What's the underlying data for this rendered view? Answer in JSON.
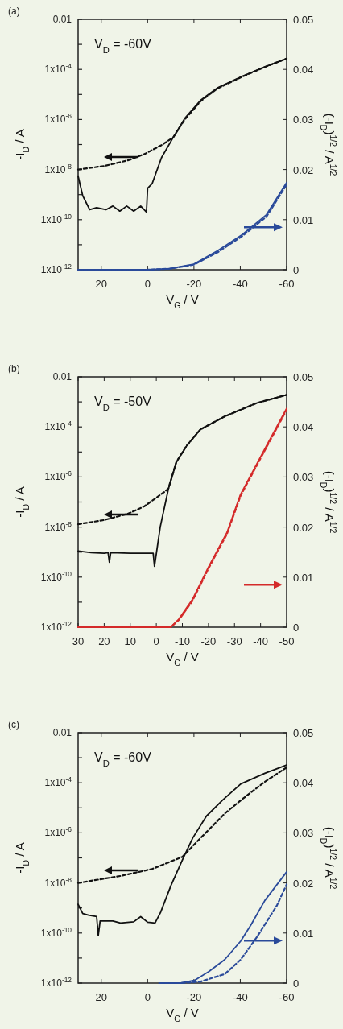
{
  "chart_data": [
    {
      "type": "line",
      "title": "(a)",
      "xlabel": "V$_{G}$ / V",
      "ylabel": "-I$_{D}$ / A",
      "y2label": "(-I$_{D}$)$^{1/2}$ / A$^{1/2}$",
      "annotations": [
        "V$_{D}$ = -60V"
      ],
      "log": "y",
      "xlim": [
        30,
        -60
      ],
      "xticks": [
        20,
        0,
        -20,
        -40,
        -60
      ],
      "ylim": [
        1e-12,
        0.01
      ],
      "yticks": [
        {
          "value": 1e-12,
          "label": "1x10$^{-12}$"
        },
        {
          "value": 1e-11,
          "label": null
        },
        {
          "value": 1e-10,
          "label": "1x10$^{-10}$"
        },
        {
          "value": 1e-09,
          "label": null
        },
        {
          "value": 1e-08,
          "label": "1x10$^{-8}$"
        },
        {
          "value": 1e-07,
          "label": null
        },
        {
          "value": 1e-06,
          "label": "1x10$^{-6}$"
        },
        {
          "value": 1e-05,
          "label": null
        },
        {
          "value": 0.0001,
          "label": "1x10$^{-4}$"
        },
        {
          "value": 0.001,
          "label": null
        },
        {
          "value": 0.01,
          "label": "0.01"
        }
      ],
      "y2lim": [
        0,
        0.05
      ],
      "y2ticks": [
        0,
        0.01,
        0.02,
        0.03,
        0.04,
        0.05
      ],
      "series": [
        {
          "color": "#111111",
          "line_style": "solid",
          "x": [
            30,
            28,
            25,
            22,
            18,
            15,
            12,
            9,
            6,
            3,
            0.5,
            0,
            -2,
            -6,
            -11,
            -16,
            -23,
            -30,
            -41,
            -51,
            -60
          ],
          "values": [
            5.5e-09,
            9e-10,
            2.5e-10,
            3e-10,
            2.5e-10,
            3.5e-10,
            2.2e-10,
            3.5e-10,
            2.2e-10,
            3.5e-10,
            2e-10,
            1.8e-09,
            2.8e-09,
            3e-08,
            1.9e-07,
            1.1e-06,
            6e-06,
            1.8e-05,
            5.4e-05,
            0.00013,
            0.00027
          ]
        },
        {
          "color": "#111111",
          "line_style": "dashed",
          "x": [
            30,
            18.5,
            8,
            1,
            -6,
            -11,
            -16,
            -23,
            -30,
            -41,
            -51,
            -60
          ],
          "values": [
            1e-08,
            1.4e-08,
            2.4e-08,
            4.3e-08,
            9.5e-08,
            1.9e-07,
            1e-06,
            5.5e-06,
            1.7e-05,
            5.2e-05,
            0.00013,
            0.00027
          ]
        },
        {
          "color": "#2a4a9a",
          "line_style": "solid",
          "axis": "y2",
          "x": [
            30,
            0,
            -9.4,
            -19.9,
            -30.3,
            -40.8,
            -51.3,
            -60
          ],
          "values": [
            0,
            0,
            0.0002,
            0.0011,
            0.0038,
            0.007,
            0.011,
            0.0174
          ]
        },
        {
          "color": "#2a4a9a",
          "line_style": "dashed",
          "axis": "y2",
          "x": [
            30,
            0,
            -9.4,
            -19.9,
            -30.3,
            -40.8,
            -51.3,
            -60
          ],
          "values": [
            0,
            0,
            0.0002,
            0.001,
            0.0035,
            0.0067,
            0.0106,
            0.017
          ]
        }
      ]
    },
    {
      "type": "line",
      "title": "(b)",
      "xlabel": "V$_{G}$ / V",
      "ylabel": "-I$_{D}$ / A",
      "y2label": "(-I$_{D}$)$^{1/2}$ / A$^{1/2}$",
      "annotations": [
        "V$_{D}$ = -50V"
      ],
      "log": "y",
      "xlim": [
        30,
        -50
      ],
      "xticks": [
        30,
        20,
        10,
        0,
        -10,
        -20,
        -30,
        -40,
        -50
      ],
      "ylim": [
        1e-12,
        0.01
      ],
      "yticks": [
        {
          "value": 1e-12,
          "label": "1x10$^{-12}$"
        },
        {
          "value": 1e-11,
          "label": null
        },
        {
          "value": 1e-10,
          "label": "1x10$^{-10}$"
        },
        {
          "value": 1e-09,
          "label": null
        },
        {
          "value": 1e-08,
          "label": "1x10$^{-8}$"
        },
        {
          "value": 1e-07,
          "label": null
        },
        {
          "value": 1e-06,
          "label": "1x10$^{-6}$"
        },
        {
          "value": 1e-05,
          "label": null
        },
        {
          "value": 0.0001,
          "label": "1x10$^{-4}$"
        },
        {
          "value": 0.001,
          "label": null
        },
        {
          "value": 0.01,
          "label": "0.01"
        }
      ],
      "y2lim": [
        0,
        0.05
      ],
      "y2ticks": [
        0,
        0.01,
        0.02,
        0.03,
        0.04,
        0.05
      ],
      "series": [
        {
          "color": "#111111",
          "line_style": "solid",
          "x": [
            30,
            25,
            20,
            18.5,
            18,
            17.5,
            10,
            5,
            1.2,
            0.7,
            -1.5,
            -4.6,
            -7.7,
            -11.7,
            -16.9,
            -26.2,
            -38.5,
            -50
          ],
          "values": [
            1.1e-09,
            9.5e-10,
            9e-10,
            9.5e-10,
            3.9e-10,
            9.5e-10,
            9e-10,
            9e-10,
            9e-10,
            2.7e-10,
            1e-08,
            3.2e-07,
            4e-06,
            1.8e-05,
            7.9e-05,
            0.00026,
            0.0009,
            0.0019
          ]
        },
        {
          "color": "#111111",
          "line_style": "dashed",
          "x": [
            30,
            20.1,
            10.9,
            4.7,
            -3,
            -4.6,
            -7.7,
            -11.7,
            -16.9,
            -26.2,
            -38.5,
            -50
          ],
          "values": [
            1.3e-08,
            1.9e-08,
            3.4e-08,
            6.6e-08,
            2.5e-07,
            3.4e-07,
            4e-06,
            1.8e-05,
            7.9e-05,
            0.00026,
            0.0009,
            0.0019
          ]
        },
        {
          "color": "#d42a2a",
          "line_style": "solid",
          "axis": "y2",
          "x": [
            30,
            0,
            -5.5,
            -8.6,
            -13.8,
            -20,
            -27.1,
            -32.3,
            -41.6,
            -50
          ],
          "values": [
            0,
            0,
            0,
            0.0016,
            0.0055,
            0.012,
            0.0189,
            0.0265,
            0.0356,
            0.0437
          ]
        },
        {
          "color": "#d42a2a",
          "line_style": "dashed",
          "axis": "y2",
          "x": [
            30,
            0,
            -5.5,
            -8.6,
            -13.8,
            -20,
            -27.1,
            -32.3,
            -41.6,
            -50
          ],
          "values": [
            0,
            0,
            0,
            0.0014,
            0.0052,
            0.0117,
            0.0186,
            0.0262,
            0.0353,
            0.0434
          ]
        }
      ]
    },
    {
      "type": "line",
      "title": "(c)",
      "xlabel": "V$_{G}$ / V",
      "ylabel": "-I$_{D}$ / A",
      "y2label": "(-I$_{D}$)$^{1/2}$ / A$^{1/2}$",
      "annotations": [
        "V$_{D}$ = -60V"
      ],
      "log": "y",
      "xlim": [
        30,
        -60
      ],
      "xticks": [
        20,
        0,
        -20,
        -40,
        -60
      ],
      "ylim": [
        1e-12,
        0.01
      ],
      "yticks": [
        {
          "value": 1e-12,
          "label": "1x10$^{-12}$"
        },
        {
          "value": 1e-11,
          "label": null
        },
        {
          "value": 1e-10,
          "label": "1x10$^{-10}$"
        },
        {
          "value": 1e-09,
          "label": null
        },
        {
          "value": 1e-08,
          "label": "1x10$^{-8}$"
        },
        {
          "value": 1e-07,
          "label": null
        },
        {
          "value": 1e-06,
          "label": "1x10$^{-6}$"
        },
        {
          "value": 1e-05,
          "label": null
        },
        {
          "value": 0.0001,
          "label": "1x10$^{-4}$"
        },
        {
          "value": 0.001,
          "label": null
        },
        {
          "value": 0.01,
          "label": "0.01"
        }
      ],
      "y2lim": [
        0,
        0.05
      ],
      "y2ticks": [
        0,
        0.01,
        0.02,
        0.03,
        0.04,
        0.05
      ],
      "series": [
        {
          "color": "#111111",
          "line_style": "solid",
          "x": [
            30,
            28,
            25.5,
            22,
            21.3,
            20.5,
            15,
            11.7,
            6,
            3,
            0,
            -3.2,
            -5.6,
            -10.1,
            -15,
            -19.5,
            -25.4,
            -32.3,
            -40.2,
            -50.6,
            -60
          ],
          "values": [
            1.4e-09,
            6e-10,
            5.2e-10,
            4.5e-10,
            8e-11,
            3e-10,
            3e-10,
            2.5e-10,
            2.8e-10,
            4.5e-10,
            2.7e-10,
            2.5e-10,
            6.7e-10,
            8e-09,
            8.3e-08,
            6.3e-07,
            4.7e-06,
            2e-05,
            9e-05,
            0.00024,
            0.00051
          ]
        },
        {
          "color": "#111111",
          "line_style": "dashed",
          "x": [
            30,
            11.7,
            -1.9,
            -15,
            -22.9,
            -33.3,
            -40.2,
            -50.6,
            -60
          ],
          "values": [
            1e-08,
            1.9e-08,
            3.6e-08,
            1.1e-07,
            6.3e-07,
            5.9e-06,
            2e-05,
            0.00011,
            0.00041
          ]
        },
        {
          "color": "#2a4a9a",
          "line_style": "solid",
          "axis": "y2",
          "x": [
            -5,
            -14.3,
            -20.5,
            -26.4,
            -33.3,
            -40.2,
            -44.7,
            -50.6,
            -60
          ],
          "values": [
            0,
            0,
            0.0006,
            0.0023,
            0.0047,
            0.0084,
            0.0117,
            0.0165,
            0.0222
          ]
        },
        {
          "color": "#2a4a9a",
          "line_style": "dashed",
          "axis": "y2",
          "x": [
            -5,
            -14.3,
            -22.9,
            -33.3,
            -40.2,
            -47.2,
            -50.6,
            -55.8,
            -60
          ],
          "values": [
            0,
            0,
            0.0003,
            0.0018,
            0.0047,
            0.0092,
            0.0117,
            0.0155,
            0.0197
          ]
        }
      ]
    }
  ]
}
